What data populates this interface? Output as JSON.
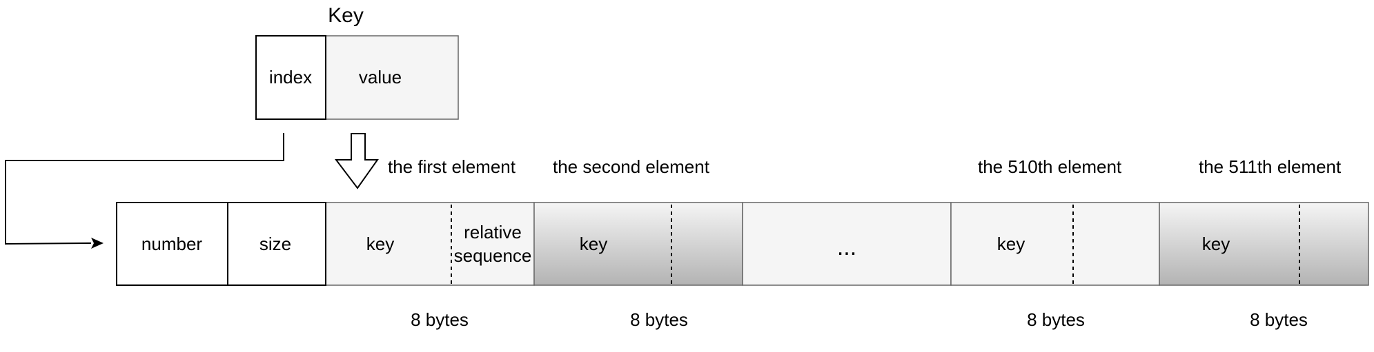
{
  "key_box": {
    "title": "Key",
    "index_label": "index",
    "value_label": "value"
  },
  "element_labels": {
    "first": "the first element",
    "second": "the second element",
    "e510": "the 510th element",
    "e511": "the 511th element"
  },
  "cells": {
    "number": "number",
    "size": "size",
    "first_key": "key",
    "relative_line1": "relative",
    "relative_line2": "sequence",
    "second_key": "key",
    "ellipsis": "...",
    "e510_key": "key",
    "e511_key": "key"
  },
  "byte_labels": {
    "first": "8 bytes",
    "second": "8 bytes",
    "e510": "8 bytes",
    "e511": "8 bytes"
  },
  "colors": {
    "stroke": "#000000",
    "light_fill": "#f5f5f5",
    "gradient_top": "#f5f5f5",
    "gradient_bottom": "#b3b3b3",
    "cell_border": "#666666"
  }
}
